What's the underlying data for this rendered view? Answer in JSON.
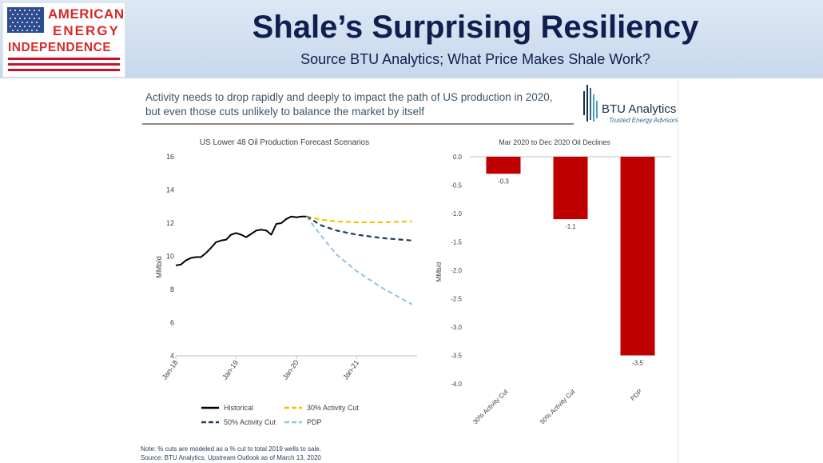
{
  "logo": {
    "line1": "AMERICAN",
    "line2": "ENERGY",
    "line3": "INDEPENDENCE"
  },
  "header": {
    "title": "Shale’s Surprising Resiliency",
    "subtitle": "Source BTU Analytics; What Price Makes Shale Work?"
  },
  "slide": {
    "headline_line1": "Activity needs to drop rapidly and deeply to impact the path of US production in 2020,",
    "headline_line2": "but even those cuts unlikely to balance the market by itself",
    "brand_name": "BTU Analytics",
    "brand_tagline": "Trusted Energy Advisors",
    "note_line1": "Note: % cuts are modeled as a % cut to total 2019 wells to sale.",
    "note_line2": "Source: BTU Analytics, Upstream Outlook as of March 13, 2020"
  },
  "colors": {
    "title_navy": "#0f1f4f",
    "logo_red": "#d62b2b",
    "historical": "#000000",
    "cut30": "#f2c200",
    "cut50": "#1f3a5c",
    "pdp": "#8ec1e6",
    "bar": "#c00000"
  },
  "chart_data": [
    {
      "type": "line",
      "title": "US Lower 48 Oil Production Forecast Scenarios",
      "xlabel": "",
      "ylabel": "MMb/d",
      "ylim": [
        4,
        16
      ],
      "yticks": [
        "4",
        "6",
        "8",
        "10",
        "12",
        "14",
        "16"
      ],
      "x_start": "2018-01",
      "x_end": "2021-12",
      "xticks": [
        "Jan-18",
        "Jan-19",
        "Jan-20",
        "Jan-21"
      ],
      "grid": false,
      "legend_position": "bottom",
      "series": [
        {
          "name": "Historical",
          "style": "solid",
          "points": [
            [
              "2018-01",
              9.45
            ],
            [
              "2018-02",
              9.5
            ],
            [
              "2018-03",
              9.75
            ],
            [
              "2018-04",
              9.9
            ],
            [
              "2018-05",
              9.95
            ],
            [
              "2018-06",
              9.95
            ],
            [
              "2018-07",
              10.2
            ],
            [
              "2018-08",
              10.5
            ],
            [
              "2018-09",
              10.85
            ],
            [
              "2018-10",
              10.95
            ],
            [
              "2018-11",
              11.0
            ],
            [
              "2018-12",
              11.3
            ],
            [
              "2019-01",
              11.4
            ],
            [
              "2019-02",
              11.3
            ],
            [
              "2019-03",
              11.15
            ],
            [
              "2019-04",
              11.35
            ],
            [
              "2019-05",
              11.55
            ],
            [
              "2019-06",
              11.6
            ],
            [
              "2019-07",
              11.55
            ],
            [
              "2019-08",
              11.3
            ],
            [
              "2019-09",
              11.95
            ],
            [
              "2019-10",
              12.0
            ],
            [
              "2019-11",
              12.25
            ],
            [
              "2019-12",
              12.4
            ],
            [
              "2020-01",
              12.35
            ],
            [
              "2020-02",
              12.4
            ],
            [
              "2020-03",
              12.4
            ]
          ]
        },
        {
          "name": "30% Activity Cut",
          "style": "dashed",
          "points": [
            [
              "2020-03",
              12.4
            ],
            [
              "2020-06",
              12.2
            ],
            [
              "2020-09",
              12.1
            ],
            [
              "2021-01",
              12.05
            ],
            [
              "2021-06",
              12.05
            ],
            [
              "2021-12",
              12.1
            ]
          ]
        },
        {
          "name": "50% Activity Cut",
          "style": "dashed",
          "points": [
            [
              "2020-03",
              12.4
            ],
            [
              "2020-06",
              11.85
            ],
            [
              "2020-09",
              11.55
            ],
            [
              "2021-01",
              11.3
            ],
            [
              "2021-06",
              11.1
            ],
            [
              "2021-12",
              10.95
            ]
          ]
        },
        {
          "name": "PDP",
          "style": "dashed",
          "points": [
            [
              "2020-03",
              12.4
            ],
            [
              "2020-06",
              11.2
            ],
            [
              "2020-09",
              10.1
            ],
            [
              "2021-01",
              9.1
            ],
            [
              "2021-06",
              8.1
            ],
            [
              "2021-12",
              7.1
            ]
          ]
        }
      ]
    },
    {
      "type": "bar",
      "title": "Mar 2020 to Dec 2020 Oil Declines",
      "xlabel": "",
      "ylabel": "MMb/d",
      "ylim": [
        -4.0,
        0.0
      ],
      "yticks": [
        "0.0",
        "-0.5",
        "-1.0",
        "-1.5",
        "-2.0",
        "-2.5",
        "-3.0",
        "-3.5",
        "-4.0"
      ],
      "categories": [
        "30% Activity Cut",
        "50% Activity Cut",
        "PDP"
      ],
      "values": [
        -0.3,
        -1.1,
        -3.5
      ],
      "data_labels": [
        "-0.3",
        "-1.1",
        "-3.5"
      ],
      "grid": false
    }
  ]
}
